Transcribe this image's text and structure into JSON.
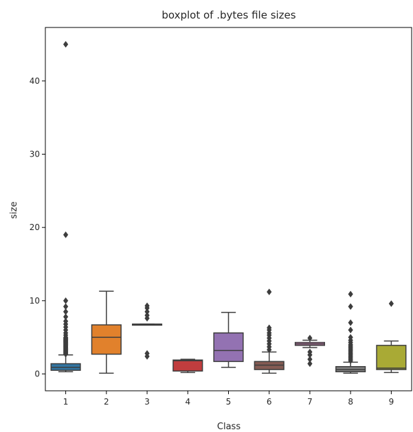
{
  "chart_data": {
    "type": "boxplot",
    "title": "boxplot of .bytes file sizes",
    "xlabel": "Class",
    "ylabel": "size",
    "categories": [
      "1",
      "2",
      "3",
      "4",
      "5",
      "6",
      "7",
      "8",
      "9"
    ],
    "ylim": [
      -2.3,
      47.3
    ],
    "yticks": [
      0,
      10,
      20,
      30,
      40
    ],
    "grid": false,
    "boxes": [
      {
        "category": "1",
        "whislo": 0.3,
        "q1": 0.5,
        "med": 0.9,
        "q3": 1.4,
        "whishi": 2.6,
        "color": "#3274a1",
        "fliers": [
          2.7,
          2.8,
          2.9,
          3.0,
          3.1,
          3.2,
          3.3,
          3.4,
          3.5,
          3.6,
          3.7,
          3.8,
          3.9,
          4.0,
          4.1,
          4.2,
          4.3,
          4.4,
          4.5,
          4.6,
          4.7,
          4.8,
          4.9,
          5.0,
          5.3,
          5.6,
          6.0,
          6.4,
          6.8,
          7.2,
          7.8,
          8.5,
          9.2,
          10.0,
          19.0,
          45.0
        ]
      },
      {
        "category": "2",
        "whislo": 0.1,
        "q1": 2.7,
        "med": 5.0,
        "q3": 6.7,
        "whishi": 11.3,
        "color": "#e1812c",
        "fliers": []
      },
      {
        "category": "3",
        "whislo": 6.8,
        "q1": 6.8,
        "med": 6.8,
        "q3": 6.8,
        "whishi": 6.8,
        "color": "#3a923a",
        "fliers": [
          2.4,
          2.8,
          7.6,
          8.0,
          8.5,
          9.0,
          9.3
        ]
      },
      {
        "category": "4",
        "whislo": 0.2,
        "q1": 0.4,
        "med": 1.8,
        "q3": 1.9,
        "whishi": 2.0,
        "color": "#c03d3e",
        "fliers": []
      },
      {
        "category": "5",
        "whislo": 0.9,
        "q1": 1.7,
        "med": 3.2,
        "q3": 5.6,
        "whishi": 8.4,
        "color": "#9372b2",
        "fliers": []
      },
      {
        "category": "6",
        "whislo": 0.1,
        "q1": 0.6,
        "med": 1.2,
        "q3": 1.7,
        "whishi": 3.0,
        "color": "#845b53",
        "fliers": [
          3.3,
          3.7,
          4.1,
          4.5,
          4.9,
          5.3,
          5.6,
          6.0,
          6.3,
          11.2
        ]
      },
      {
        "category": "7",
        "whislo": 3.6,
        "q1": 3.9,
        "med": 4.1,
        "q3": 4.3,
        "whishi": 4.6,
        "color": "#d684bd",
        "fliers": [
          1.4,
          2.0,
          2.6,
          3.0,
          4.9
        ]
      },
      {
        "category": "8",
        "whislo": 0.1,
        "q1": 0.3,
        "med": 0.6,
        "q3": 1.0,
        "whishi": 1.6,
        "color": "#7f7f7f",
        "fliers": [
          1.8,
          2.0,
          2.2,
          2.4,
          2.6,
          2.8,
          3.0,
          3.2,
          3.4,
          3.6,
          3.8,
          4.0,
          4.3,
          4.6,
          5.0,
          6.0,
          7.0,
          9.2,
          10.9
        ]
      },
      {
        "category": "9",
        "whislo": 0.2,
        "q1": 0.6,
        "med": 0.8,
        "q3": 3.9,
        "whishi": 4.5,
        "color": "#a9aa35",
        "fliers": [
          9.6
        ]
      }
    ]
  }
}
